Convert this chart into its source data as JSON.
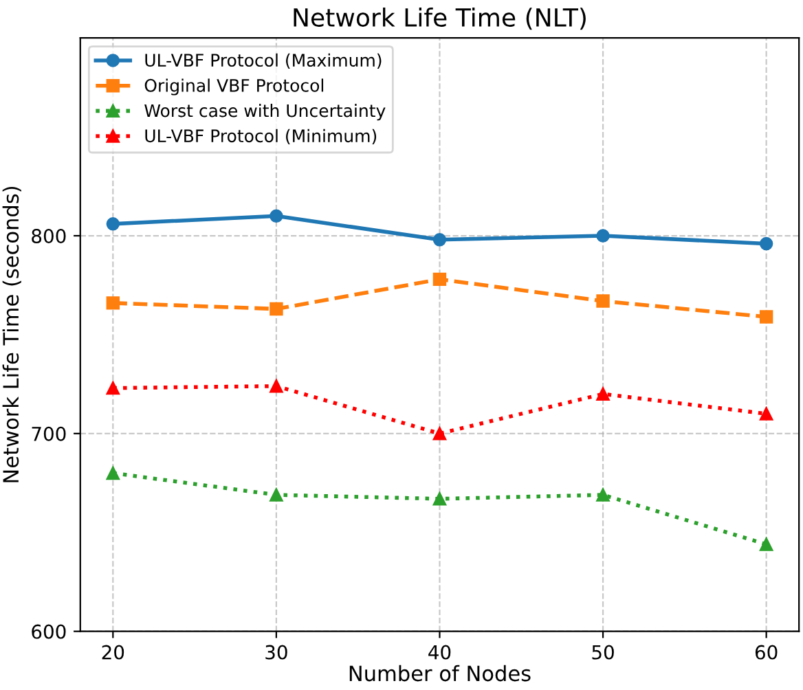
{
  "chart_data": {
    "type": "line",
    "title": "Network Life Time (NLT)",
    "xlabel": "Number of Nodes",
    "ylabel": "Network Life Time (seconds)",
    "x": [
      20,
      30,
      40,
      50,
      60
    ],
    "series": [
      {
        "name": "UL-VBF Protocol (Maximum)",
        "color": "#1f77b4",
        "values": [
          806,
          810,
          798,
          800,
          796
        ],
        "marker": "circle",
        "line_style": "solid"
      },
      {
        "name": "Original VBF Protocol",
        "color": "#ff7f0e",
        "values": [
          766,
          763,
          778,
          767,
          759
        ],
        "marker": "square",
        "line_style": "dashed"
      },
      {
        "name": "Worst case with Uncertainty",
        "color": "#2ca02c",
        "values": [
          680,
          669,
          667,
          669,
          644
        ],
        "marker": "triangle",
        "line_style": "dotted"
      },
      {
        "name": "UL-VBF Protocol (Minimum)",
        "color": "#ff0000",
        "values": [
          723,
          724,
          700,
          720,
          710
        ],
        "marker": "triangle",
        "line_style": "dotted"
      }
    ],
    "xlim": [
      18,
      62
    ],
    "ylim": [
      600,
      900
    ],
    "xticks": [
      20,
      30,
      40,
      50,
      60
    ],
    "yticks": [
      600,
      700,
      800
    ],
    "grid": true,
    "legend": "top left"
  }
}
